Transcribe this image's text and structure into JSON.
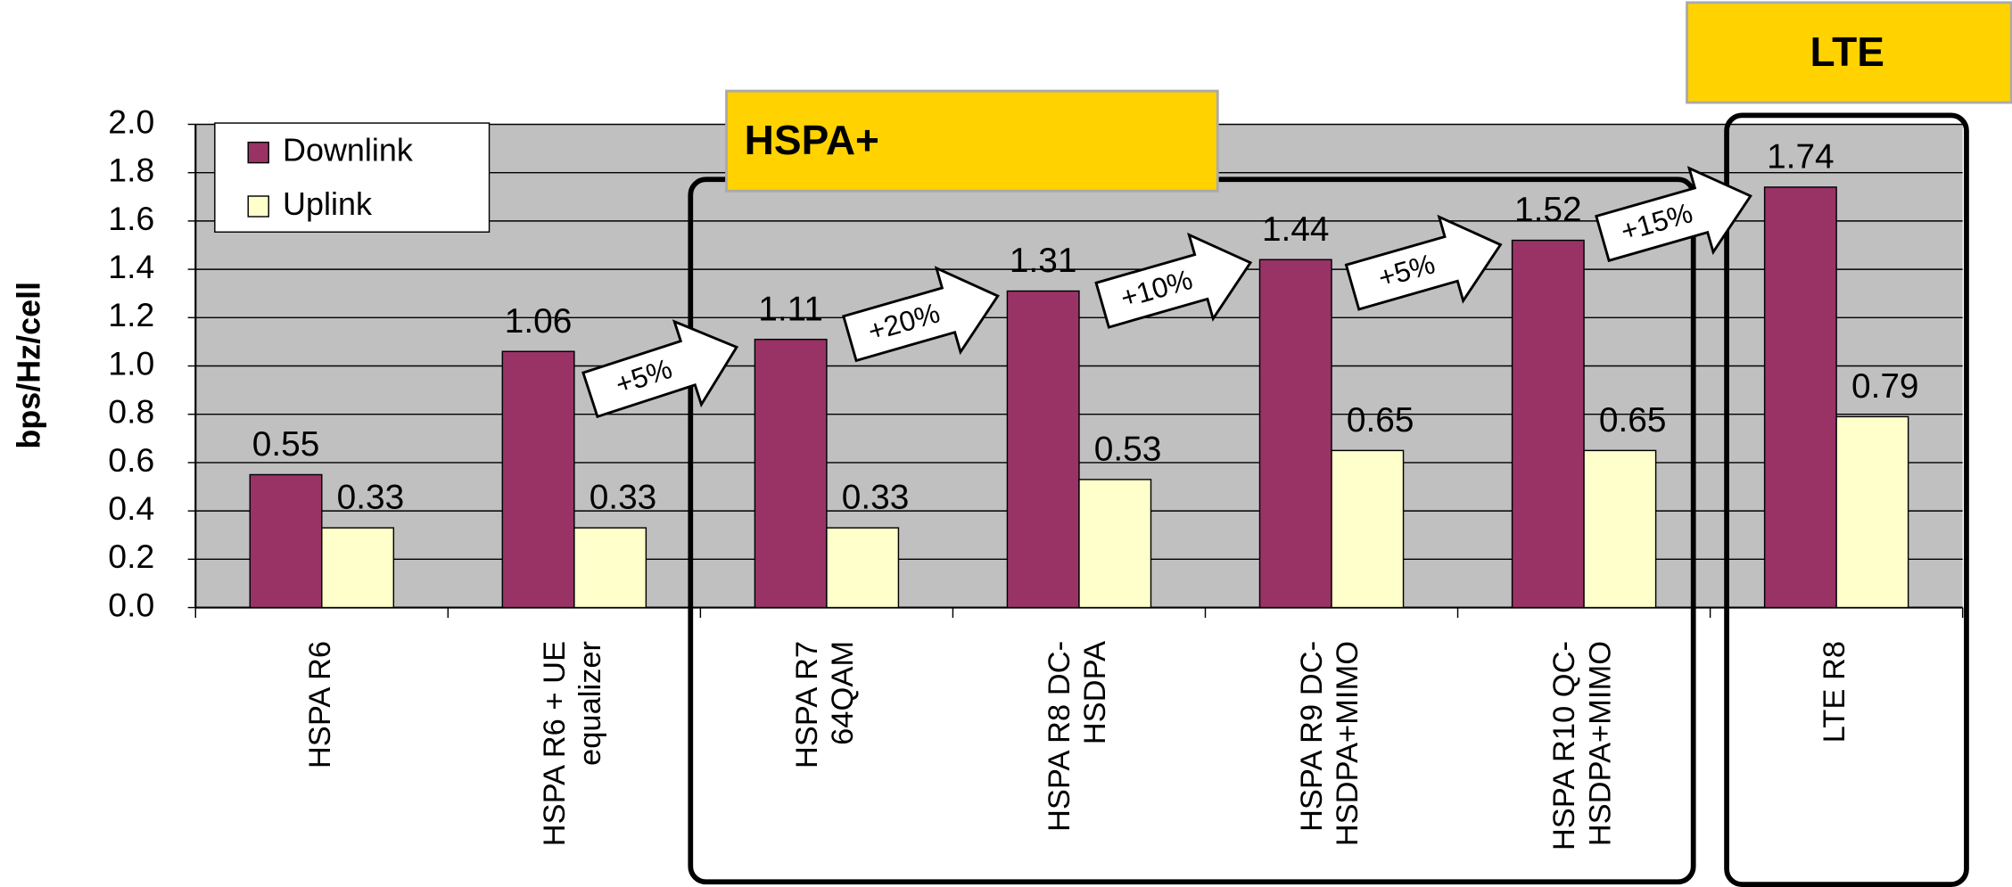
{
  "chart_data": {
    "type": "bar",
    "y_label": "bps/Hz/cell",
    "categories": [
      [
        "HSPA R6"
      ],
      [
        "HSPA R6 + UE",
        "equalizer"
      ],
      [
        "HSPA R7",
        "64QAM"
      ],
      [
        "HSPA R8 DC-",
        "HSDPA"
      ],
      [
        "HSPA R9 DC-",
        "HSDPA+MIMO"
      ],
      [
        "HSPA R10 QC-",
        "HSDPA+MIMO"
      ],
      [
        "LTE R8"
      ]
    ],
    "series": [
      {
        "name": "Downlink",
        "color": "#993366",
        "values": [
          0.55,
          1.06,
          1.11,
          1.31,
          1.44,
          1.52,
          1.74
        ]
      },
      {
        "name": "Uplink",
        "color": "#ffffcc",
        "values": [
          0.33,
          0.33,
          0.33,
          0.53,
          0.65,
          0.65,
          0.79
        ]
      }
    ],
    "ylim": [
      0,
      2
    ],
    "yticks": [
      {
        "value": 0,
        "label": "0.0"
      },
      0.2,
      0.4,
      0.6,
      0.8,
      {
        "value": 1,
        "label": "1.0"
      },
      1.2,
      1.4,
      1.6,
      1.8,
      {
        "value": 2,
        "label": "2.0"
      }
    ],
    "grid": true,
    "legend": "top-left",
    "annotations": [
      "+5%",
      "+20%",
      "+10%",
      "+5%",
      "+15%"
    ],
    "groups": [
      "HSPA+",
      "LTE"
    ]
  }
}
